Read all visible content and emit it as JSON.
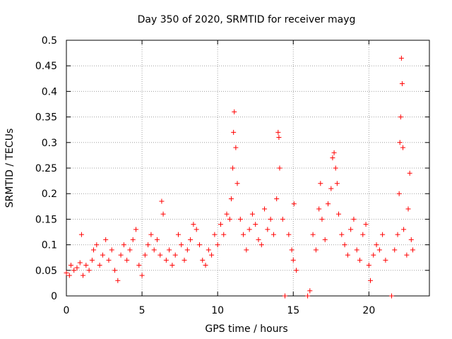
{
  "chart_data": {
    "type": "scatter",
    "title": "Day 350 of 2020, SRMTID for receiver mayg",
    "xlabel": "GPS time / hours",
    "ylabel": "SRMTID / TECUs",
    "xlim": [
      0,
      24
    ],
    "ylim": [
      0,
      0.5
    ],
    "xticks": [
      0,
      5,
      10,
      15,
      20
    ],
    "xtick_labels": [
      "0",
      "5",
      "10",
      "15",
      "20"
    ],
    "yticks": [
      0,
      0.05,
      0.1,
      0.15,
      0.2,
      0.25,
      0.3,
      0.35,
      0.4,
      0.45,
      0.5
    ],
    "ytick_labels": [
      "0",
      "0.05",
      "0.1",
      "0.15",
      "0.2",
      "0.25",
      "0.3",
      "0.35",
      "0.4",
      "0.45",
      "0.5"
    ],
    "grid": true,
    "marker": "+",
    "color": "#ff0000",
    "series": [
      {
        "name": "SRMTID",
        "points": [
          [
            0.0,
            0.045
          ],
          [
            0.2,
            0.04
          ],
          [
            0.3,
            0.06
          ],
          [
            0.5,
            0.05
          ],
          [
            0.7,
            0.055
          ],
          [
            0.9,
            0.065
          ],
          [
            1.0,
            0.12
          ],
          [
            1.1,
            0.04
          ],
          [
            1.3,
            0.06
          ],
          [
            1.5,
            0.05
          ],
          [
            1.7,
            0.07
          ],
          [
            1.8,
            0.09
          ],
          [
            2.0,
            0.1
          ],
          [
            2.2,
            0.06
          ],
          [
            2.4,
            0.08
          ],
          [
            2.6,
            0.11
          ],
          [
            2.8,
            0.07
          ],
          [
            3.0,
            0.09
          ],
          [
            3.2,
            0.05
          ],
          [
            3.4,
            0.03
          ],
          [
            3.6,
            0.08
          ],
          [
            3.8,
            0.1
          ],
          [
            4.0,
            0.07
          ],
          [
            4.2,
            0.09
          ],
          [
            4.4,
            0.11
          ],
          [
            4.6,
            0.13
          ],
          [
            4.8,
            0.06
          ],
          [
            5.0,
            0.04
          ],
          [
            5.2,
            0.08
          ],
          [
            5.4,
            0.1
          ],
          [
            5.6,
            0.12
          ],
          [
            5.8,
            0.09
          ],
          [
            6.0,
            0.11
          ],
          [
            6.2,
            0.08
          ],
          [
            6.3,
            0.185
          ],
          [
            6.4,
            0.16
          ],
          [
            6.6,
            0.07
          ],
          [
            6.8,
            0.09
          ],
          [
            7.0,
            0.06
          ],
          [
            7.2,
            0.08
          ],
          [
            7.4,
            0.12
          ],
          [
            7.6,
            0.1
          ],
          [
            7.8,
            0.07
          ],
          [
            8.0,
            0.09
          ],
          [
            8.2,
            0.11
          ],
          [
            8.4,
            0.14
          ],
          [
            8.6,
            0.13
          ],
          [
            8.8,
            0.1
          ],
          [
            9.0,
            0.07
          ],
          [
            9.2,
            0.06
          ],
          [
            9.4,
            0.09
          ],
          [
            9.6,
            0.08
          ],
          [
            9.8,
            0.12
          ],
          [
            10.0,
            0.1
          ],
          [
            10.2,
            0.14
          ],
          [
            10.4,
            0.12
          ],
          [
            10.6,
            0.16
          ],
          [
            10.8,
            0.15
          ],
          [
            10.9,
            0.19
          ],
          [
            11.0,
            0.25
          ],
          [
            11.05,
            0.32
          ],
          [
            11.1,
            0.36
          ],
          [
            11.2,
            0.29
          ],
          [
            11.3,
            0.22
          ],
          [
            11.5,
            0.15
          ],
          [
            11.7,
            0.12
          ],
          [
            11.9,
            0.09
          ],
          [
            12.1,
            0.13
          ],
          [
            12.3,
            0.16
          ],
          [
            12.5,
            0.14
          ],
          [
            12.7,
            0.11
          ],
          [
            12.9,
            0.1
          ],
          [
            13.1,
            0.17
          ],
          [
            13.3,
            0.13
          ],
          [
            13.5,
            0.15
          ],
          [
            13.7,
            0.12
          ],
          [
            13.9,
            0.19
          ],
          [
            14.0,
            0.32
          ],
          [
            14.05,
            0.31
          ],
          [
            14.1,
            0.25
          ],
          [
            14.3,
            0.15
          ],
          [
            14.45,
            0.0
          ],
          [
            14.7,
            0.12
          ],
          [
            14.9,
            0.09
          ],
          [
            15.0,
            0.07
          ],
          [
            15.05,
            0.18
          ],
          [
            15.2,
            0.05
          ],
          [
            15.95,
            0.0
          ],
          [
            16.1,
            0.01
          ],
          [
            16.3,
            0.12
          ],
          [
            16.5,
            0.09
          ],
          [
            16.7,
            0.17
          ],
          [
            16.8,
            0.22
          ],
          [
            16.9,
            0.15
          ],
          [
            17.1,
            0.11
          ],
          [
            17.3,
            0.18
          ],
          [
            17.5,
            0.21
          ],
          [
            17.6,
            0.27
          ],
          [
            17.7,
            0.28
          ],
          [
            17.8,
            0.25
          ],
          [
            17.9,
            0.22
          ],
          [
            18.0,
            0.16
          ],
          [
            18.2,
            0.12
          ],
          [
            18.4,
            0.1
          ],
          [
            18.6,
            0.08
          ],
          [
            18.8,
            0.13
          ],
          [
            19.0,
            0.15
          ],
          [
            19.2,
            0.09
          ],
          [
            19.4,
            0.07
          ],
          [
            19.6,
            0.12
          ],
          [
            19.8,
            0.14
          ],
          [
            20.0,
            0.06
          ],
          [
            20.1,
            0.03
          ],
          [
            20.3,
            0.08
          ],
          [
            20.5,
            0.1
          ],
          [
            20.7,
            0.09
          ],
          [
            20.9,
            0.12
          ],
          [
            21.1,
            0.07
          ],
          [
            21.5,
            0.0
          ],
          [
            21.7,
            0.09
          ],
          [
            21.9,
            0.12
          ],
          [
            22.0,
            0.2
          ],
          [
            22.05,
            0.3
          ],
          [
            22.1,
            0.35
          ],
          [
            22.15,
            0.465
          ],
          [
            22.2,
            0.415
          ],
          [
            22.25,
            0.29
          ],
          [
            22.3,
            0.13
          ],
          [
            22.5,
            0.08
          ],
          [
            22.6,
            0.17
          ],
          [
            22.7,
            0.24
          ],
          [
            22.8,
            0.11
          ],
          [
            22.9,
            0.09
          ]
        ]
      }
    ]
  }
}
